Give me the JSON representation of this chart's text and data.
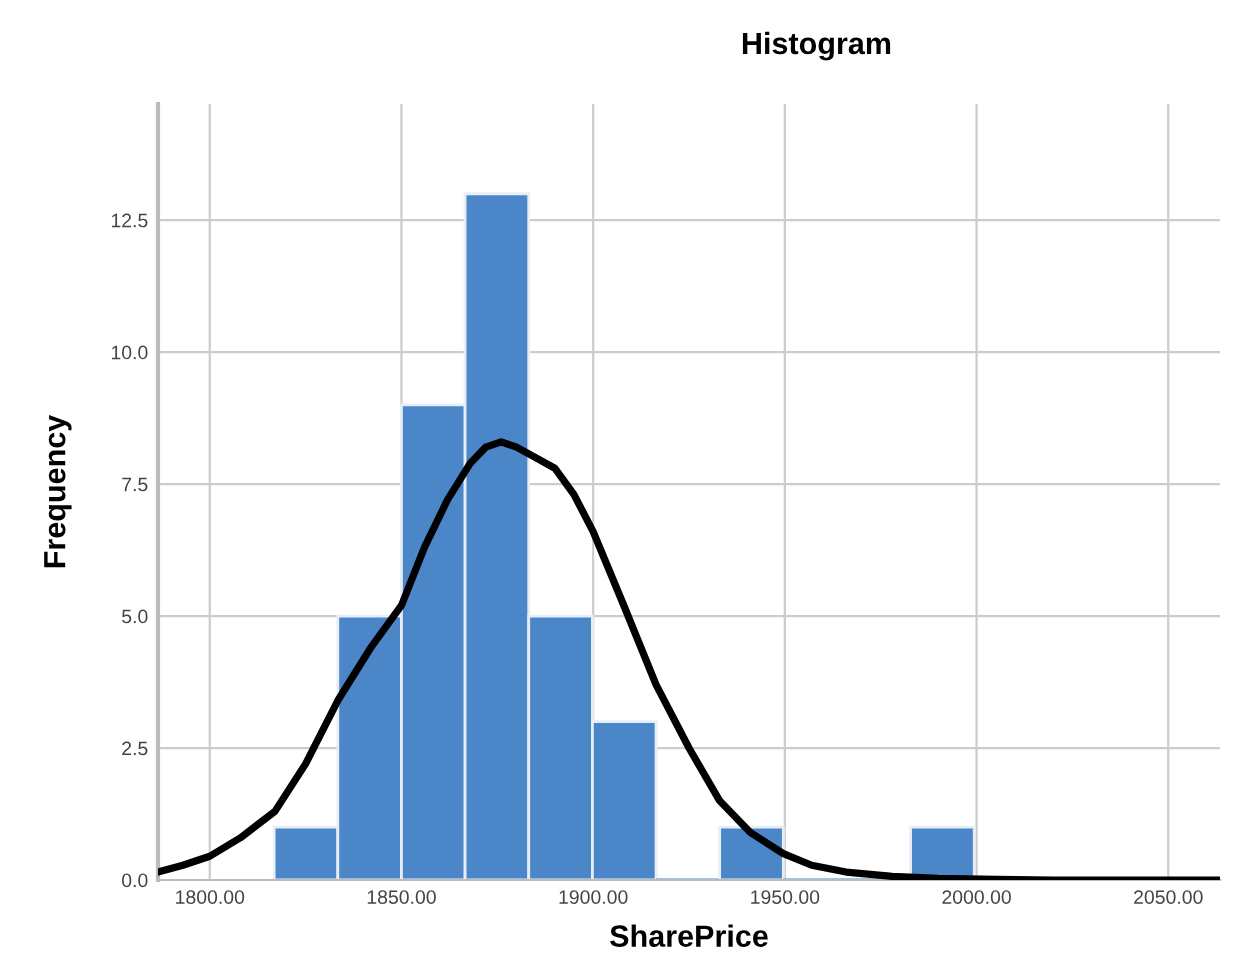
{
  "chart_data": {
    "type": "histogram",
    "title": "Histogram",
    "xlabel": "SharePrice",
    "ylabel": "Frequency",
    "bins": [
      1816.8,
      1833.4,
      1850,
      1866.6,
      1883.2,
      1899.8,
      1916.4,
      1933,
      1949.6,
      1966.2,
      1982.8,
      1999.4
    ],
    "values": [
      1,
      5,
      9,
      13,
      5,
      3,
      0,
      1,
      0,
      0,
      1
    ],
    "color": "#4a86c8",
    "series": [
      {
        "type": "line",
        "color": "#000000",
        "x": [
          1786.5,
          1793,
          1800,
          1808,
          1817,
          1825,
          1833.4,
          1842,
          1850,
          1856,
          1862,
          1868,
          1872,
          1876,
          1880,
          1885,
          1890,
          1895,
          1900,
          1908,
          1916.4,
          1925,
          1933,
          1941,
          1949.6,
          1957,
          1966,
          1978,
          1990,
          2005,
          2020,
          2063.5
        ],
        "values": [
          0.15,
          0.28,
          0.45,
          0.8,
          1.3,
          2.2,
          3.4,
          4.4,
          5.2,
          6.3,
          7.2,
          7.9,
          8.2,
          8.3,
          8.2,
          8.0,
          7.8,
          7.3,
          6.6,
          5.2,
          3.7,
          2.5,
          1.5,
          0.9,
          0.5,
          0.28,
          0.15,
          0.07,
          0.03,
          0.01,
          0,
          0
        ]
      }
    ],
    "xlim": [
      1786.5,
      2063.5
    ],
    "ylim": [
      0,
      14.7
    ],
    "xticks": [
      {
        "value": 1800,
        "label": "1800.00"
      },
      {
        "value": 1850,
        "label": "1850.00"
      },
      {
        "value": 1900,
        "label": "1900.00"
      },
      {
        "value": 1950,
        "label": "1950.00"
      },
      {
        "value": 2000,
        "label": "2000.00"
      },
      {
        "value": 2050,
        "label": "2050.00"
      }
    ],
    "yticks": [
      {
        "value": 0,
        "label": "0.0"
      },
      {
        "value": 2.5,
        "label": "2.5"
      },
      {
        "value": 5,
        "label": "5.0"
      },
      {
        "value": 7.5,
        "label": "7.5"
      },
      {
        "value": 10,
        "label": "10.0"
      },
      {
        "value": 12.5,
        "label": "12.5"
      }
    ],
    "grid": true,
    "marker": "none",
    "line_style": "solid"
  }
}
